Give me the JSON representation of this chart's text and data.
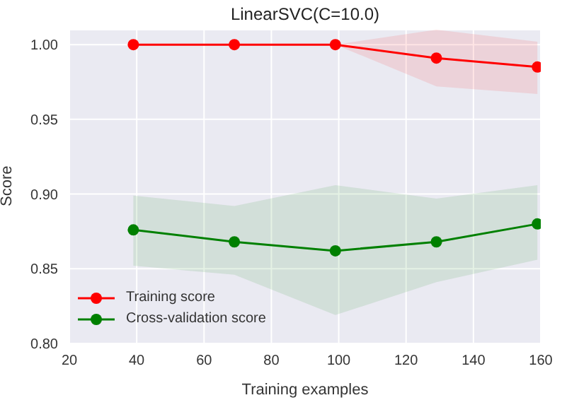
{
  "chart_data": {
    "type": "line",
    "title": "LinearSVC(C=10.0)",
    "xlabel": "Training examples",
    "ylabel": "Score",
    "x": [
      39,
      69,
      99,
      129,
      159
    ],
    "series": [
      {
        "name": "Training score",
        "color": "#ff0000",
        "values": [
          1.0,
          1.0,
          1.0,
          0.991,
          0.985
        ],
        "lower": [
          1.0,
          1.0,
          1.0,
          0.972,
          0.967
        ],
        "upper": [
          1.0,
          1.0,
          1.0,
          1.01,
          1.002
        ]
      },
      {
        "name": "Cross-validation score",
        "color": "#008000",
        "values": [
          0.876,
          0.868,
          0.862,
          0.868,
          0.88
        ],
        "lower": [
          0.852,
          0.846,
          0.819,
          0.841,
          0.856
        ],
        "upper": [
          0.899,
          0.892,
          0.906,
          0.897,
          0.906
        ]
      }
    ],
    "xlim": [
      20,
      160
    ],
    "xticks": [
      20,
      40,
      60,
      80,
      100,
      120,
      140,
      160
    ],
    "ylim": [
      0.8,
      1.01
    ],
    "yticks": [
      {
        "value": 0.8,
        "label": "0.80"
      },
      0.85,
      {
        "value": 0.9,
        "label": "0.90"
      },
      0.95,
      {
        "value": 1.0,
        "label": "1.00"
      }
    ],
    "grid": true,
    "legend": "bottom left",
    "marker": "circle",
    "line_style": "solid"
  }
}
